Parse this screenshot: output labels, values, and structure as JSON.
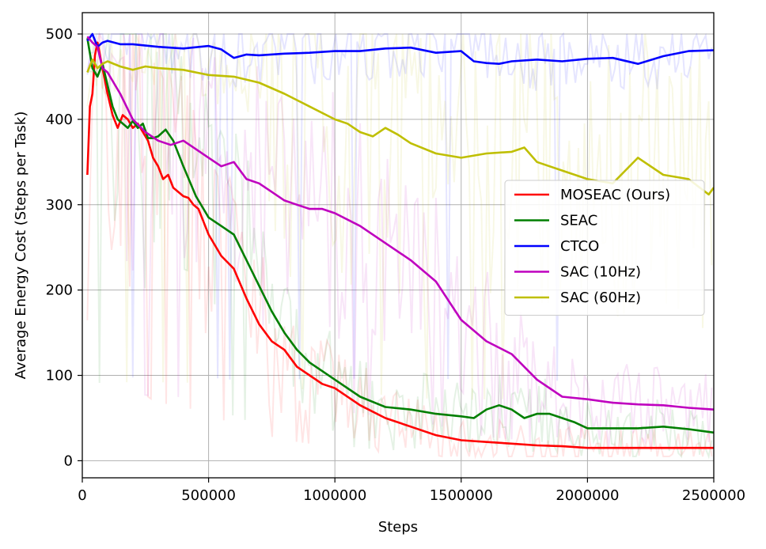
{
  "chart_data": {
    "type": "line",
    "title": "",
    "xlabel": "Steps",
    "ylabel": "Average Energy Cost (Steps per Task)",
    "xlim": [
      0,
      2500000
    ],
    "ylim": [
      -20,
      525
    ],
    "xticks": [
      0,
      500000,
      1000000,
      1500000,
      2000000,
      2500000
    ],
    "xtick_labels": [
      "0",
      "500000",
      "1000000",
      "1500000",
      "2000000",
      "2500000"
    ],
    "yticks": [
      0,
      100,
      200,
      300,
      400,
      500
    ],
    "ytick_labels": [
      "0",
      "100",
      "200",
      "300",
      "400",
      "500"
    ],
    "grid": true,
    "legend_position": "center-right",
    "series": [
      {
        "name": "MOSEAC (Ours)",
        "color": "#ff0000",
        "x": [
          20000,
          30000,
          40000,
          50000,
          60000,
          80000,
          100000,
          120000,
          140000,
          160000,
          180000,
          200000,
          220000,
          240000,
          260000,
          280000,
          300000,
          320000,
          340000,
          360000,
          380000,
          400000,
          420000,
          440000,
          460000,
          480000,
          500000,
          550000,
          600000,
          650000,
          700000,
          750000,
          800000,
          850000,
          900000,
          950000,
          1000000,
          1100000,
          1200000,
          1300000,
          1400000,
          1500000,
          1600000,
          1700000,
          1800000,
          1900000,
          2000000,
          2100000,
          2200000,
          2300000,
          2400000,
          2500000
        ],
        "y": [
          335,
          415,
          430,
          475,
          490,
          460,
          430,
          405,
          390,
          405,
          400,
          390,
          395,
          385,
          375,
          355,
          345,
          330,
          335,
          320,
          315,
          310,
          308,
          300,
          295,
          280,
          265,
          240,
          225,
          190,
          160,
          140,
          130,
          110,
          100,
          90,
          85,
          65,
          50,
          40,
          30,
          24,
          22,
          20,
          18,
          17,
          15,
          15,
          15,
          15,
          15,
          15
        ]
      },
      {
        "name": "SEAC",
        "color": "#007f00",
        "x": [
          20000,
          40000,
          60000,
          80000,
          100000,
          120000,
          140000,
          160000,
          180000,
          200000,
          220000,
          240000,
          260000,
          280000,
          300000,
          330000,
          360000,
          400000,
          450000,
          500000,
          550000,
          600000,
          650000,
          700000,
          750000,
          800000,
          850000,
          900000,
          950000,
          1000000,
          1100000,
          1200000,
          1300000,
          1400000,
          1500000,
          1550000,
          1600000,
          1650000,
          1700000,
          1750000,
          1800000,
          1850000,
          1900000,
          1950000,
          2000000,
          2100000,
          2200000,
          2300000,
          2400000,
          2500000
        ],
        "y": [
          495,
          460,
          450,
          465,
          440,
          415,
          400,
          395,
          390,
          398,
          390,
          395,
          378,
          378,
          380,
          388,
          375,
          345,
          310,
          285,
          275,
          265,
          235,
          205,
          175,
          150,
          130,
          115,
          105,
          95,
          75,
          63,
          60,
          55,
          52,
          50,
          60,
          65,
          60,
          50,
          55,
          55,
          50,
          45,
          38,
          38,
          38,
          40,
          37,
          33
        ]
      },
      {
        "name": "CTCO",
        "color": "#0000ff",
        "x": [
          20000,
          40000,
          60000,
          80000,
          100000,
          150000,
          200000,
          300000,
          400000,
          500000,
          550000,
          600000,
          650000,
          700000,
          800000,
          900000,
          1000000,
          1100000,
          1200000,
          1300000,
          1400000,
          1500000,
          1550000,
          1600000,
          1650000,
          1700000,
          1800000,
          1900000,
          2000000,
          2100000,
          2200000,
          2300000,
          2400000,
          2500000
        ],
        "y": [
          492,
          500,
          485,
          490,
          492,
          488,
          488,
          485,
          483,
          486,
          482,
          472,
          476,
          475,
          477,
          478,
          480,
          480,
          483,
          484,
          478,
          480,
          468,
          466,
          465,
          468,
          470,
          468,
          471,
          472,
          465,
          474,
          480,
          481
        ]
      },
      {
        "name": "SAC (10Hz)",
        "color": "#bf00bf",
        "x": [
          20000,
          40000,
          60000,
          80000,
          100000,
          150000,
          200000,
          250000,
          300000,
          350000,
          400000,
          450000,
          500000,
          550000,
          600000,
          650000,
          700000,
          750000,
          800000,
          850000,
          900000,
          950000,
          1000000,
          1100000,
          1200000,
          1300000,
          1400000,
          1500000,
          1600000,
          1700000,
          1800000,
          1900000,
          2000000,
          2100000,
          2200000,
          2300000,
          2400000,
          2500000
        ],
        "y": [
          497,
          490,
          485,
          460,
          455,
          430,
          400,
          385,
          375,
          370,
          375,
          365,
          355,
          345,
          350,
          330,
          325,
          315,
          305,
          300,
          295,
          295,
          290,
          275,
          255,
          235,
          210,
          165,
          140,
          125,
          95,
          75,
          72,
          68,
          66,
          65,
          62,
          60
        ]
      },
      {
        "name": "SAC (60Hz)",
        "color": "#bfbf00",
        "x": [
          20000,
          40000,
          60000,
          80000,
          100000,
          150000,
          200000,
          250000,
          300000,
          400000,
          500000,
          600000,
          700000,
          800000,
          900000,
          1000000,
          1050000,
          1100000,
          1150000,
          1200000,
          1250000,
          1300000,
          1400000,
          1500000,
          1600000,
          1700000,
          1750000,
          1800000,
          1900000,
          2000000,
          2100000,
          2200000,
          2300000,
          2400000,
          2480000,
          2500000
        ],
        "y": [
          455,
          470,
          460,
          465,
          468,
          462,
          458,
          462,
          460,
          458,
          452,
          450,
          443,
          430,
          415,
          400,
          395,
          385,
          380,
          390,
          382,
          372,
          360,
          355,
          360,
          362,
          367,
          350,
          340,
          330,
          325,
          355,
          335,
          330,
          312,
          320
        ]
      }
    ]
  }
}
